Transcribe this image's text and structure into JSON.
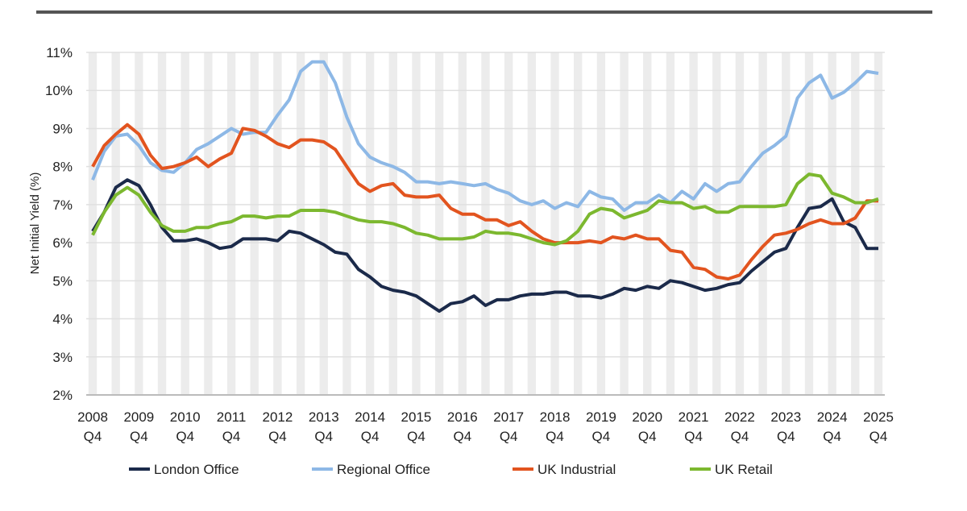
{
  "chart_data": {
    "type": "line",
    "title": "",
    "xlabel": "",
    "ylabel": "Net Initial Yield (%)",
    "ylim": [
      2,
      11
    ],
    "y_tick_labels": [
      "2%",
      "3%",
      "4%",
      "5%",
      "6%",
      "7%",
      "8%",
      "9%",
      "10%",
      "11%"
    ],
    "x_frequency": "quarterly",
    "x_tick_labels": [
      [
        "2008",
        "Q4"
      ],
      [
        "2009",
        "Q4"
      ],
      [
        "2010",
        "Q4"
      ],
      [
        "2011",
        "Q4"
      ],
      [
        "2012",
        "Q4"
      ],
      [
        "2013",
        "Q4"
      ],
      [
        "2014",
        "Q4"
      ],
      [
        "2015",
        "Q4"
      ],
      [
        "2016",
        "Q4"
      ],
      [
        "2017",
        "Q4"
      ],
      [
        "2018",
        "Q4"
      ],
      [
        "2019",
        "Q4"
      ],
      [
        "2020",
        "Q4"
      ],
      [
        "2021",
        "Q4"
      ],
      [
        "2022",
        "Q4"
      ],
      [
        "2023",
        "Q4"
      ],
      [
        "2024",
        "Q4"
      ],
      [
        "2025",
        "Q4"
      ]
    ],
    "grid": "horizontal gridlines with alternating quarterly column shading",
    "legend_position": "bottom",
    "series": [
      {
        "name": "London Office",
        "color": "#1b2a4a",
        "values": [
          6.3,
          6.8,
          7.45,
          7.65,
          7.5,
          7.0,
          6.4,
          6.05,
          6.05,
          6.1,
          6.0,
          5.85,
          5.9,
          6.1,
          6.1,
          6.1,
          6.05,
          6.3,
          6.25,
          6.1,
          5.95,
          5.75,
          5.7,
          5.3,
          5.1,
          4.85,
          4.75,
          4.7,
          4.6,
          4.4,
          4.2,
          4.4,
          4.45,
          4.6,
          4.35,
          4.5,
          4.5,
          4.6,
          4.65,
          4.65,
          4.7,
          4.7,
          4.6,
          4.6,
          4.55,
          4.65,
          4.8,
          4.75,
          4.85,
          4.8,
          5.0,
          4.95,
          4.85,
          4.75,
          4.8,
          4.9,
          4.95,
          5.25,
          5.5,
          5.75,
          5.85,
          6.4,
          6.9,
          6.95,
          7.15,
          6.55,
          6.4,
          5.85,
          5.85
        ]
      },
      {
        "name": "Regional Office",
        "color": "#8db8e6",
        "values": [
          7.65,
          8.4,
          8.8,
          8.85,
          8.55,
          8.1,
          7.9,
          7.85,
          8.1,
          8.45,
          8.6,
          8.8,
          9.0,
          8.85,
          8.9,
          8.9,
          9.35,
          9.75,
          10.5,
          10.75,
          10.75,
          10.2,
          9.3,
          8.6,
          8.25,
          8.1,
          8.0,
          7.85,
          7.6,
          7.6,
          7.55,
          7.6,
          7.55,
          7.5,
          7.55,
          7.4,
          7.3,
          7.1,
          7.0,
          7.1,
          6.9,
          7.05,
          6.95,
          7.35,
          7.2,
          7.15,
          6.85,
          7.05,
          7.05,
          7.25,
          7.05,
          7.35,
          7.15,
          7.55,
          7.35,
          7.55,
          7.6,
          8.0,
          8.35,
          8.55,
          8.8,
          9.8,
          10.2,
          10.4,
          9.8,
          9.95,
          10.2,
          10.5,
          10.45
        ]
      },
      {
        "name": "UK Industrial",
        "color": "#e2541f",
        "values": [
          8.0,
          8.55,
          8.85,
          9.1,
          8.85,
          8.3,
          7.95,
          8.0,
          8.1,
          8.25,
          8.0,
          8.2,
          8.35,
          9.0,
          8.95,
          8.8,
          8.6,
          8.5,
          8.7,
          8.7,
          8.65,
          8.45,
          8.0,
          7.55,
          7.35,
          7.5,
          7.55,
          7.25,
          7.2,
          7.2,
          7.25,
          6.9,
          6.75,
          6.75,
          6.6,
          6.6,
          6.45,
          6.55,
          6.3,
          6.1,
          6.0,
          6.0,
          6.0,
          6.05,
          6.0,
          6.15,
          6.1,
          6.2,
          6.1,
          6.1,
          5.8,
          5.75,
          5.35,
          5.3,
          5.1,
          5.05,
          5.15,
          5.55,
          5.9,
          6.2,
          6.25,
          6.35,
          6.5,
          6.6,
          6.5,
          6.5,
          6.65,
          7.1,
          7.1
        ]
      },
      {
        "name": "UK Retail",
        "color": "#7cb82f",
        "values": [
          6.2,
          6.8,
          7.25,
          7.45,
          7.25,
          6.8,
          6.45,
          6.3,
          6.3,
          6.4,
          6.4,
          6.5,
          6.55,
          6.7,
          6.7,
          6.65,
          6.7,
          6.7,
          6.85,
          6.85,
          6.85,
          6.8,
          6.7,
          6.6,
          6.55,
          6.55,
          6.5,
          6.4,
          6.25,
          6.2,
          6.1,
          6.1,
          6.1,
          6.15,
          6.3,
          6.25,
          6.25,
          6.2,
          6.1,
          6.0,
          5.95,
          6.05,
          6.3,
          6.75,
          6.9,
          6.85,
          6.65,
          6.75,
          6.85,
          7.1,
          7.05,
          7.05,
          6.9,
          6.95,
          6.8,
          6.8,
          6.95,
          6.95,
          6.95,
          6.95,
          7.0,
          7.55,
          7.8,
          7.75,
          7.3,
          7.2,
          7.05,
          7.05,
          7.15
        ]
      }
    ]
  }
}
